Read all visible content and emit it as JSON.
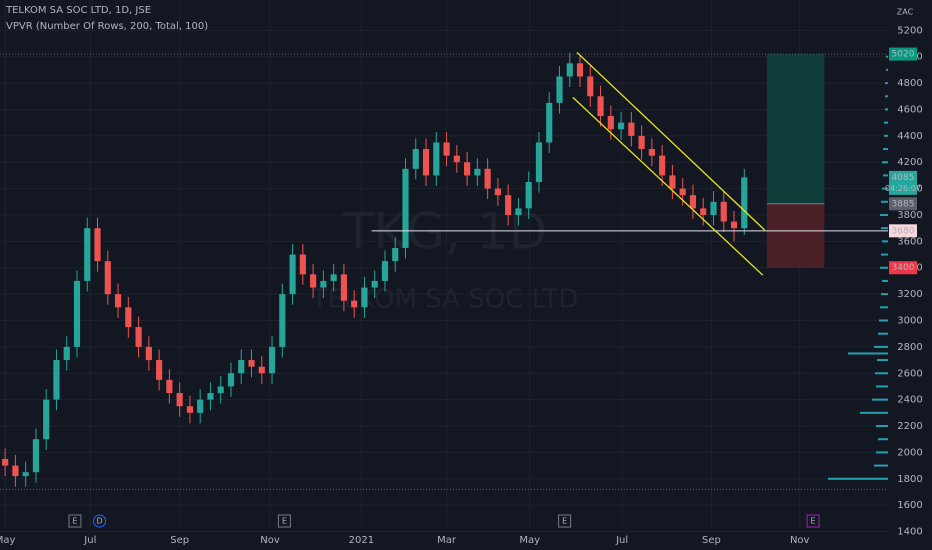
{
  "chart_data": {
    "type": "candlestick",
    "title": "TELKOM SA SOC LTD, 1D, JSE",
    "subtitle": "VPVR (Number Of Rows, 200, Total, 100)",
    "watermark": "TKG, 1D",
    "watermark_name": "TELKOM SA SOC LTD",
    "currency": "ZAC",
    "up_color": "#26a69a",
    "down_color": "#ef5350",
    "xlim": [
      -0.5,
      86
    ],
    "ylim": [
      1260,
      5430
    ],
    "yticks": [
      1400,
      1600,
      1800,
      2000,
      2200,
      2400,
      2600,
      2800,
      3000,
      3200,
      3400,
      3600,
      3800,
      4000,
      4200,
      4400,
      4600,
      4800,
      5000,
      5200
    ],
    "xticks": [
      {
        "value": 0,
        "label": "May"
      },
      {
        "value": 8.3,
        "label": "Jul"
      },
      {
        "value": 17,
        "label": "Sep"
      },
      {
        "value": 25.8,
        "label": "Nov"
      },
      {
        "value": 34.7,
        "label": "2021"
      },
      {
        "value": 43,
        "label": "Mar"
      },
      {
        "value": 51.1,
        "label": "May"
      },
      {
        "value": 60.1,
        "label": "Jul"
      },
      {
        "value": 68.8,
        "label": "Sep"
      },
      {
        "value": 77.4,
        "label": "Nov"
      }
    ],
    "candles": [
      [
        1950,
        2030,
        1820,
        1900
      ],
      [
        1900,
        1980,
        1740,
        1820
      ],
      [
        1820,
        1930,
        1740,
        1850
      ],
      [
        1850,
        2180,
        1770,
        2100
      ],
      [
        2100,
        2480,
        2020,
        2400
      ],
      [
        2400,
        2780,
        2320,
        2700
      ],
      [
        2700,
        2880,
        2620,
        2800
      ],
      [
        2800,
        3380,
        2720,
        3300
      ],
      [
        3300,
        3780,
        3220,
        3700
      ],
      [
        3700,
        3780,
        3370,
        3450
      ],
      [
        3450,
        3530,
        3120,
        3200
      ],
      [
        3200,
        3280,
        3020,
        3100
      ],
      [
        3100,
        3180,
        2870,
        2950
      ],
      [
        2950,
        3030,
        2720,
        2800
      ],
      [
        2800,
        2880,
        2620,
        2700
      ],
      [
        2700,
        2780,
        2470,
        2550
      ],
      [
        2550,
        2630,
        2370,
        2450
      ],
      [
        2450,
        2530,
        2270,
        2350
      ],
      [
        2350,
        2430,
        2220,
        2300
      ],
      [
        2300,
        2480,
        2220,
        2400
      ],
      [
        2400,
        2530,
        2320,
        2450
      ],
      [
        2450,
        2580,
        2370,
        2500
      ],
      [
        2500,
        2680,
        2420,
        2600
      ],
      [
        2600,
        2780,
        2520,
        2700
      ],
      [
        2700,
        2780,
        2570,
        2650
      ],
      [
        2650,
        2730,
        2520,
        2600
      ],
      [
        2600,
        2880,
        2520,
        2800
      ],
      [
        2800,
        3280,
        2720,
        3200
      ],
      [
        3200,
        3580,
        3120,
        3500
      ],
      [
        3500,
        3580,
        3270,
        3350
      ],
      [
        3350,
        3430,
        3170,
        3250
      ],
      [
        3250,
        3380,
        3170,
        3300
      ],
      [
        3300,
        3430,
        3220,
        3350
      ],
      [
        3350,
        3430,
        3070,
        3150
      ],
      [
        3150,
        3230,
        3020,
        3100
      ],
      [
        3100,
        3330,
        3020,
        3250
      ],
      [
        3250,
        3380,
        3170,
        3300
      ],
      [
        3300,
        3530,
        3220,
        3450
      ],
      [
        3450,
        3630,
        3370,
        3550
      ],
      [
        3550,
        4230,
        3470,
        4150
      ],
      [
        4150,
        4380,
        4070,
        4300
      ],
      [
        4300,
        4380,
        4020,
        4100
      ],
      [
        4100,
        4430,
        4020,
        4350
      ],
      [
        4350,
        4430,
        4170,
        4250
      ],
      [
        4250,
        4330,
        4120,
        4200
      ],
      [
        4200,
        4280,
        4020,
        4100
      ],
      [
        4100,
        4230,
        4020,
        4150
      ],
      [
        4150,
        4230,
        3920,
        4000
      ],
      [
        4000,
        4080,
        3870,
        3950
      ],
      [
        3950,
        4030,
        3720,
        3800
      ],
      [
        3800,
        3930,
        3720,
        3850
      ],
      [
        3850,
        4130,
        3770,
        4050
      ],
      [
        4050,
        4430,
        3970,
        4350
      ],
      [
        4350,
        4730,
        4270,
        4650
      ],
      [
        4650,
        4930,
        4570,
        4850
      ],
      [
        4850,
        5030,
        4770,
        4950
      ],
      [
        4950,
        5010,
        4770,
        4850
      ],
      [
        4850,
        4930,
        4620,
        4700
      ],
      [
        4700,
        4780,
        4470,
        4550
      ],
      [
        4550,
        4630,
        4370,
        4450
      ],
      [
        4450,
        4580,
        4370,
        4500
      ],
      [
        4500,
        4580,
        4320,
        4400
      ],
      [
        4400,
        4480,
        4220,
        4300
      ],
      [
        4300,
        4380,
        4170,
        4250
      ],
      [
        4250,
        4330,
        4020,
        4100
      ],
      [
        4100,
        4180,
        3920,
        4000
      ],
      [
        4000,
        4080,
        3870,
        3950
      ],
      [
        3950,
        4030,
        3770,
        3850
      ],
      [
        3850,
        3930,
        3720,
        3800
      ],
      [
        3800,
        3980,
        3720,
        3900
      ],
      [
        3900,
        3980,
        3670,
        3750
      ],
      [
        3750,
        3830,
        3600,
        3700
      ],
      [
        3700,
        4150,
        3650,
        4085
      ]
    ],
    "markers": [
      {
        "value": 5020,
        "color": "#089981",
        "text_color": "#ffffff"
      },
      {
        "value": 4085,
        "color": "#26a69a",
        "text_color": "#ffffff"
      },
      {
        "value": 3885,
        "color": "#5d606b",
        "text_color": "#ffffff"
      },
      {
        "value": 3680,
        "color": "#f8d7dc",
        "text_color": "#131722"
      },
      {
        "value": 3400,
        "color": "#f23645",
        "text_color": "#ffffff"
      }
    ],
    "countdown": "04:26:07",
    "position": {
      "x": [
        74.2,
        79.8
      ],
      "target": 5020,
      "entry": 3885,
      "stop": 3400,
      "profit_color": "#0f3d3a",
      "loss_color": "#4a1f26"
    },
    "support_line": {
      "value": 3680,
      "x": [
        35.7,
        86
      ],
      "color": "#e0e3eb"
    },
    "dotted_levels": [
      5020,
      1720
    ],
    "channel": {
      "color": "#e6e31f",
      "upper": [
        [
          55.7,
          5033
        ],
        [
          74,
          3685
        ]
      ],
      "lower": [
        [
          55.3,
          4692
        ],
        [
          73.8,
          3344
        ]
      ]
    },
    "events": [
      {
        "x": 6.8,
        "label": "E",
        "color": "#787b86"
      },
      {
        "x": 9.2,
        "label": "D",
        "color": "#2962ff"
      },
      {
        "x": 27.2,
        "label": "E",
        "color": "#787b86"
      },
      {
        "x": 54.5,
        "label": "E",
        "color": "#787b86"
      },
      {
        "x": 78.7,
        "label": "E",
        "color": "#9c27b0"
      }
    ],
    "volume_profile": {
      "color": "#22a1b0",
      "levels": [
        1800,
        1900,
        2000,
        2100,
        2200,
        2300,
        2400,
        2500,
        2600,
        2700,
        2750,
        2800,
        2900,
        3000,
        3100,
        3200,
        3300,
        3400,
        3500,
        3600,
        3700,
        3800,
        3900,
        4000,
        4100,
        4200,
        4300,
        4400,
        4500,
        4600,
        4700,
        4800,
        4900,
        5000
      ],
      "values": [
        60,
        14,
        12,
        10,
        12,
        28,
        16,
        12,
        13,
        11,
        40,
        14,
        10,
        9,
        8,
        7,
        6,
        8,
        7,
        6,
        7,
        8,
        7,
        6,
        5,
        6,
        5,
        4,
        4,
        3,
        3,
        3,
        2,
        2
      ]
    }
  }
}
